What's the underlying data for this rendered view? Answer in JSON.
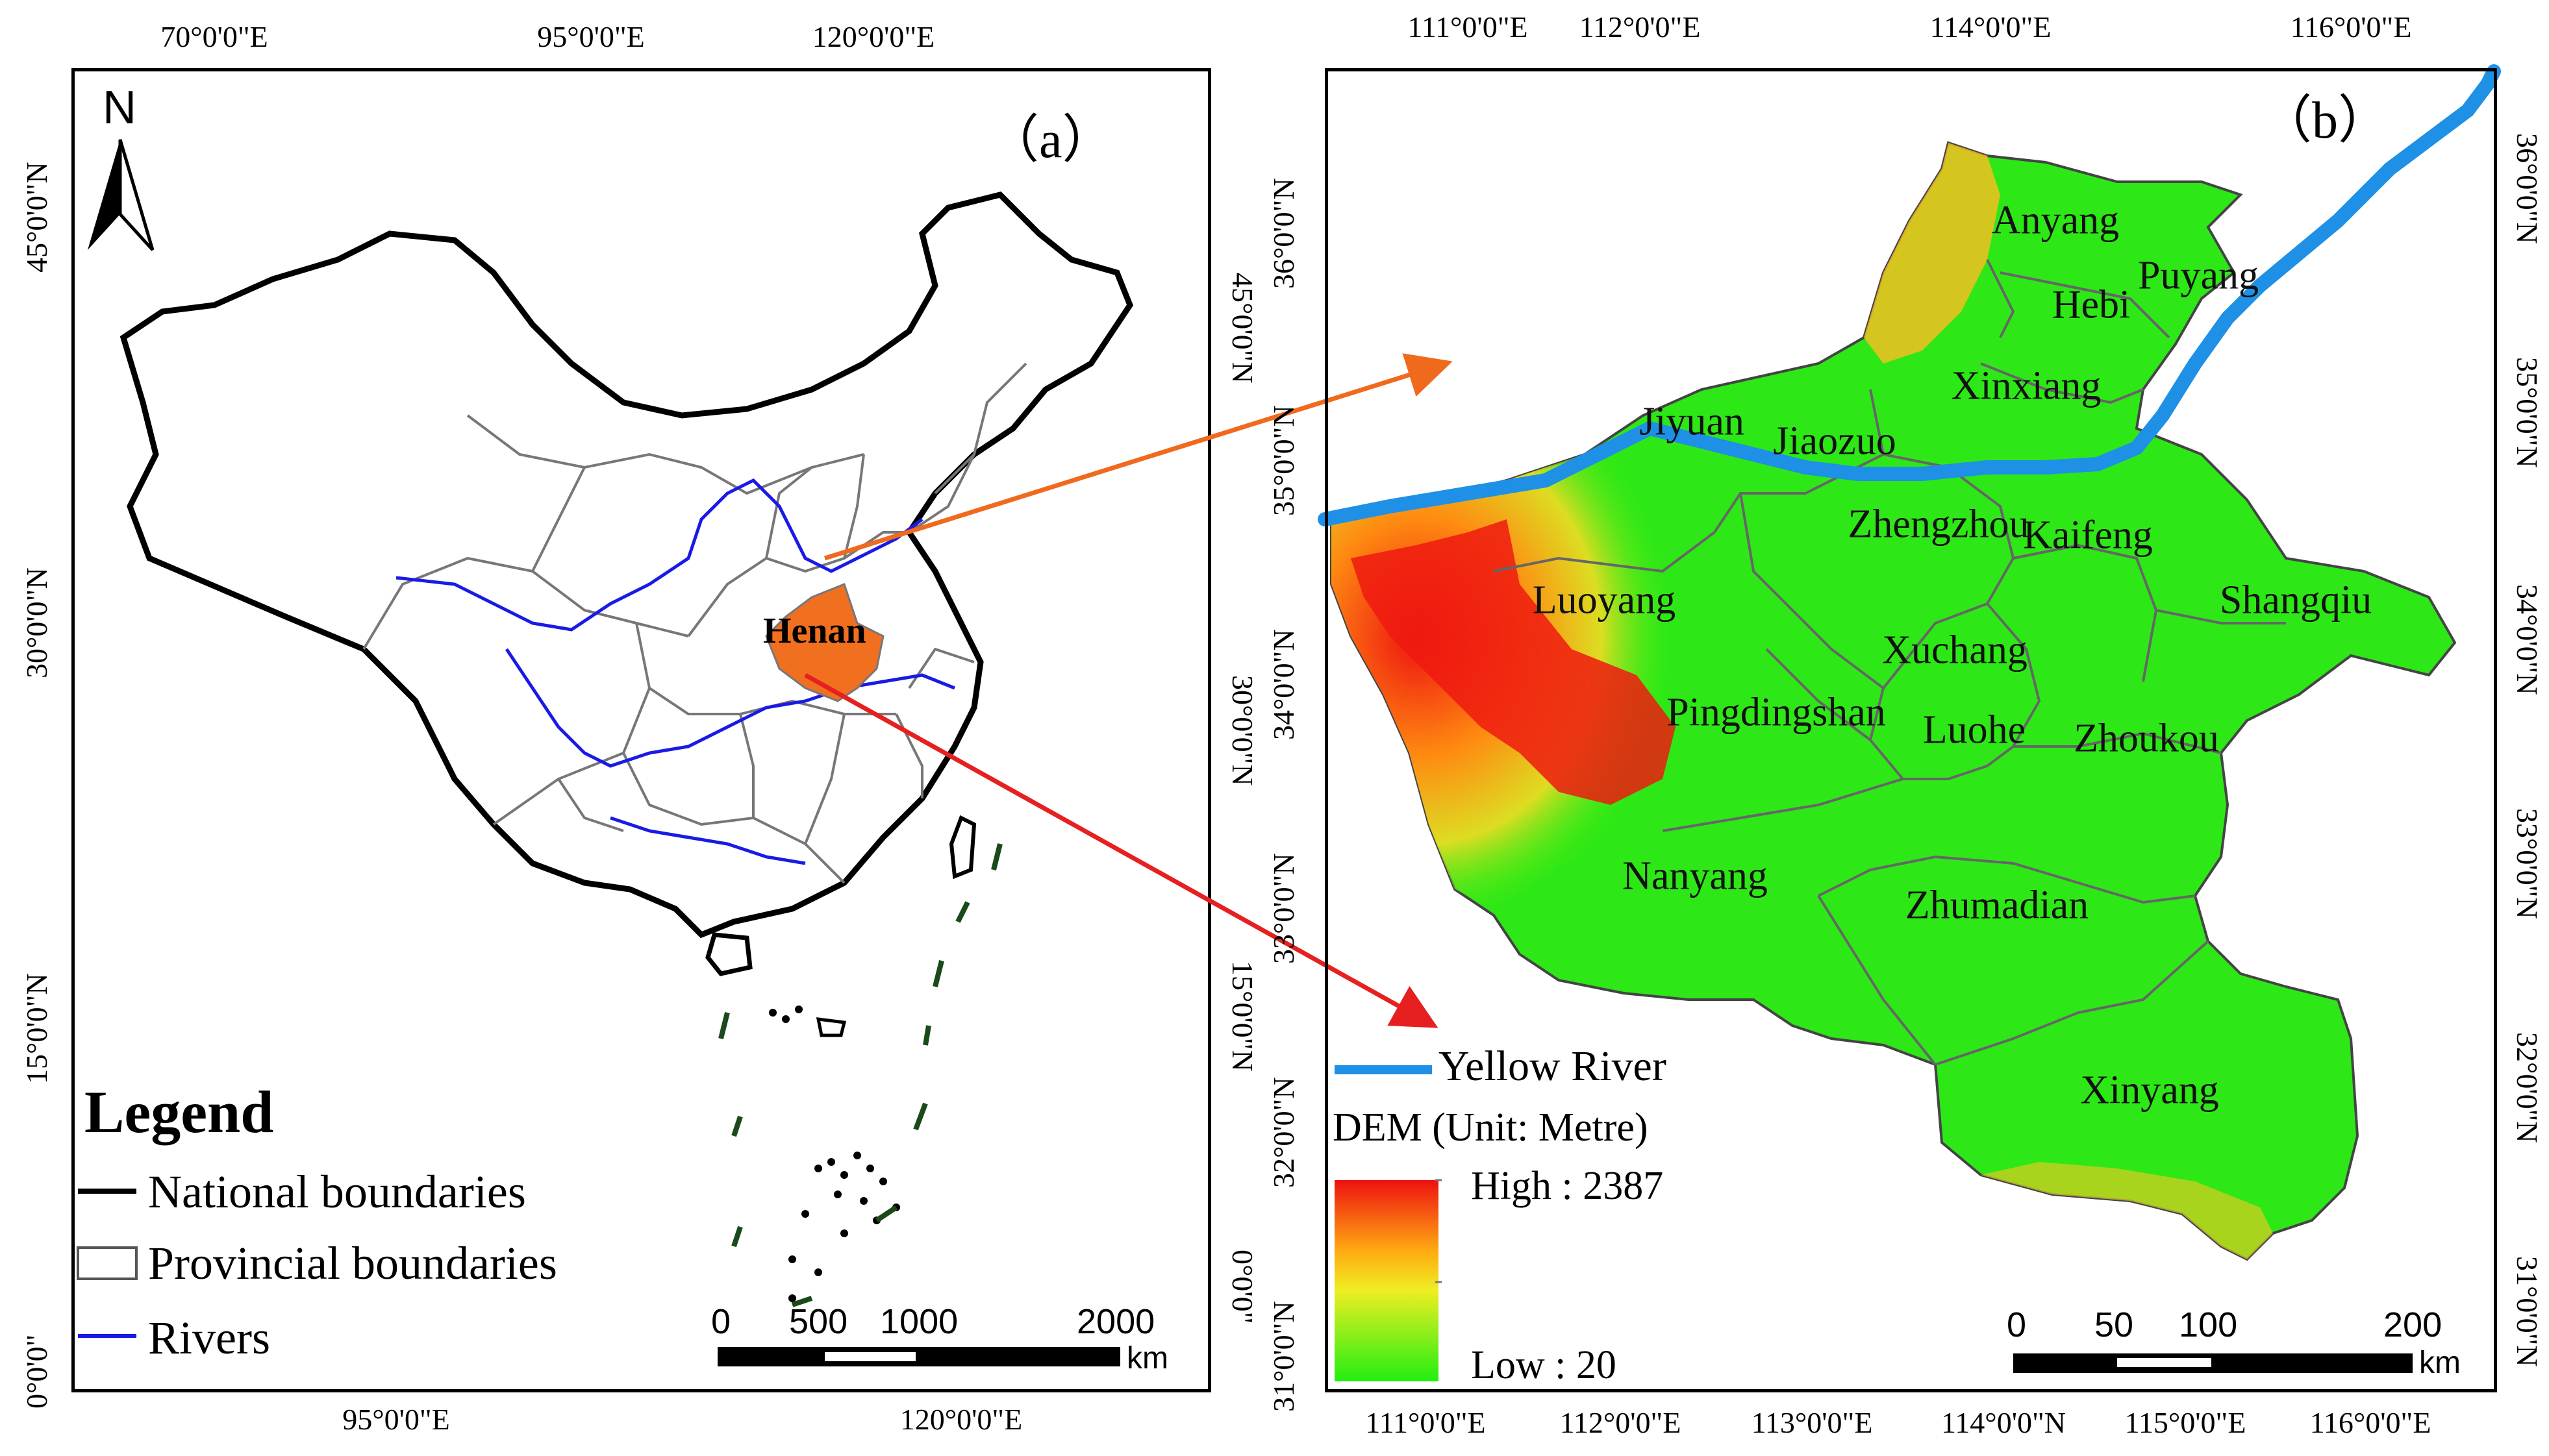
{
  "panel_a": {
    "label": "（a）",
    "north": "N",
    "top_lon_ticks": [
      "70°0'0\"E",
      "95°0'0\"E",
      "120°0'0\"E"
    ],
    "bottom_lon_ticks": [
      "95°0'0\"E",
      "120°0'0\"E"
    ],
    "left_lat_ticks": [
      "45°0'0\"N",
      "30°0'0\"N",
      "15°0'0\"N",
      "0°0'0\""
    ],
    "right_lat_ticks": [
      "45°0'0\"N",
      "30°0'0\"N",
      "15°0'0\"N",
      "0°0'0\""
    ],
    "province_label": "Henan",
    "legend": {
      "title": "Legend",
      "items": [
        "National boundaries",
        "Provincial boundaries",
        "Rivers"
      ]
    },
    "scale": {
      "ticks": [
        "0",
        "500",
        "1000",
        "2000"
      ],
      "unit": "km"
    }
  },
  "panel_b": {
    "label": "（b）",
    "top_lon_ticks": [
      "111°0'0\"E",
      "112°0'0\"E",
      "114°0'0\"E",
      "116°0'0\"E"
    ],
    "bottom_lon_ticks": [
      "111°0'0\"E",
      "112°0'0\"E",
      "113°0'0\"E",
      "114°0'0\"N",
      "115°0'0\"E",
      "116°0'0\"E"
    ],
    "left_lat_ticks": [
      "36°0'0\"N",
      "35°0'0\"N",
      "34°0'0\"N",
      "33°0'0\"N",
      "32°0'0\"N",
      "31°0'0\"N"
    ],
    "right_lat_ticks": [
      "36°0'0\"N",
      "35°0'0\"N",
      "34°0'0\"N",
      "33°0'0\"N",
      "32°0'0\"N",
      "31°0'0\"N"
    ],
    "cities": [
      "Anyang",
      "Hebi",
      "Puyang",
      "Xinxiang",
      "Jiyuan",
      "Jiaozuo",
      "Zhengzhou",
      "Kaifeng",
      "Luoyang",
      "Shangqiu",
      "Xuchang",
      "Pingdingshan",
      "Luohe",
      "Zhoukou",
      "Nanyang",
      "Zhumadian",
      "Xinyang"
    ],
    "river_legend": "Yellow River",
    "dem_title": "DEM (Unit: Metre)",
    "dem_high": "High : 2387",
    "dem_low": "Low : 20",
    "scale": {
      "ticks": [
        "0",
        "50",
        "100",
        "200"
      ],
      "unit": "km"
    }
  },
  "colors": {
    "henan": "#f07020",
    "river_yellow": "#1e90e6",
    "rivers": "#1a1ae6",
    "arrow_orange": "#f06a1e",
    "arrow_red": "#e62020",
    "dem_low": "#22ee11",
    "dem_high": "#ee1111"
  }
}
